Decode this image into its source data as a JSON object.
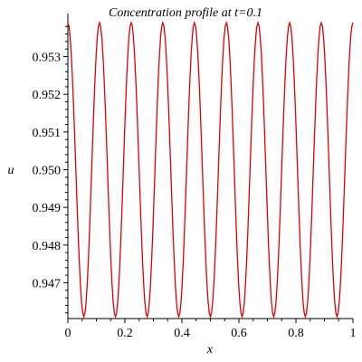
{
  "chart_data": {
    "type": "line",
    "title": "Concentration profile at t=0.1",
    "xlabel": "x",
    "ylabel": "u",
    "xlim": [
      0,
      1
    ],
    "ylim": [
      0.94605,
      0.95395
    ],
    "x_ticks": [
      {
        "value": 0,
        "label": "0"
      },
      {
        "value": 0.2,
        "label": "0.2"
      },
      {
        "value": 0.4,
        "label": "0.4"
      },
      {
        "value": 0.6,
        "label": "0.6"
      },
      {
        "value": 0.8,
        "label": "0.8"
      },
      {
        "value": 1,
        "label": "1"
      }
    ],
    "y_ticks": [
      {
        "value": 0.947,
        "label": "0.947"
      },
      {
        "value": 0.948,
        "label": "0.948"
      },
      {
        "value": 0.949,
        "label": "0.949"
      },
      {
        "value": 0.95,
        "label": "0.950"
      },
      {
        "value": 0.951,
        "label": "0.951"
      },
      {
        "value": 0.952,
        "label": "0.952"
      },
      {
        "value": 0.953,
        "label": "0.953"
      }
    ],
    "grid": false,
    "line_color": "#e00000",
    "series": [
      {
        "values": [
          [
            0.0,
            0.9539
          ],
          [
            0.056,
            0.9461
          ],
          [
            0.111,
            0.9539
          ],
          [
            0.167,
            0.9461
          ],
          [
            0.222,
            0.9539
          ],
          [
            0.278,
            0.9461
          ],
          [
            0.333,
            0.9539
          ],
          [
            0.389,
            0.9461
          ],
          [
            0.444,
            0.9539
          ],
          [
            0.5,
            0.9461
          ],
          [
            0.556,
            0.9539
          ],
          [
            0.611,
            0.9461
          ],
          [
            0.667,
            0.9539
          ],
          [
            0.722,
            0.9461
          ],
          [
            0.778,
            0.9539
          ],
          [
            0.833,
            0.9461
          ],
          [
            0.889,
            0.9539
          ],
          [
            0.944,
            0.9461
          ],
          [
            1.0,
            0.9539
          ]
        ]
      }
    ]
  }
}
